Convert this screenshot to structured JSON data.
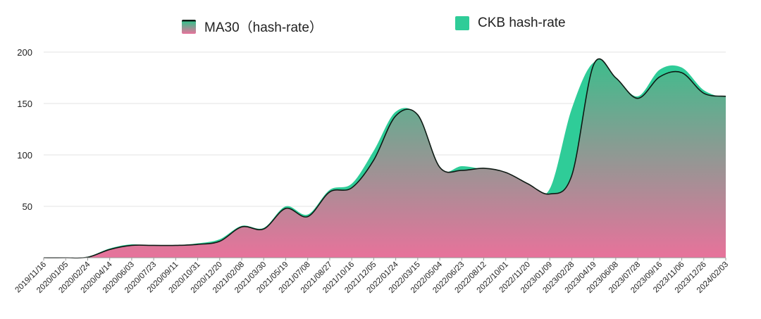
{
  "chart_data": {
    "type": "area",
    "title": "",
    "xlabel": "",
    "ylabel": "",
    "ylim": [
      0,
      200
    ],
    "yticks": [
      50,
      100,
      150,
      200
    ],
    "grid": true,
    "legend_position": "top",
    "colors": {
      "ckb_fill": "#2fcc98",
      "ma30_gradient_top": "#3dbd8c",
      "ma30_gradient_bottom": "#e8729b",
      "ma30_line": "#0e1a14",
      "grid": "#e3e3e3",
      "axis": "#9a9a9a",
      "text": "#222222"
    },
    "categories": [
      "2019/11/16",
      "2020/01/05",
      "2020/02/24",
      "2020/04/14",
      "2020/06/03",
      "2020/07/23",
      "2020/09/11",
      "2020/10/31",
      "2020/12/20",
      "2021/02/08",
      "2021/03/30",
      "2021/05/19",
      "2021/07/08",
      "2021/08/27",
      "2021/10/16",
      "2021/12/05",
      "2022/01/24",
      "2022/03/15",
      "2022/05/04",
      "2022/06/23",
      "2022/08/12",
      "2022/10/01",
      "2022/11/20",
      "2023/01/09",
      "2023/02/28",
      "2023/04/19",
      "2023/06/08",
      "2023/07/28",
      "2023/09/16",
      "2023/11/06",
      "2023/12/26",
      "2024/02/03"
    ],
    "series": [
      {
        "name": "MA30（hash-rate）",
        "values": [
          0,
          0,
          0.5,
          8,
          12,
          12,
          12,
          13,
          16,
          30,
          28,
          48,
          40,
          64,
          68,
          95,
          138,
          139,
          88,
          85,
          87,
          83,
          72,
          62,
          80,
          188,
          175,
          155,
          176,
          180,
          160,
          157
        ]
      },
      {
        "name": "CKB hash-rate",
        "values": [
          0,
          0,
          1,
          9,
          13,
          11,
          12,
          14,
          18,
          31,
          29,
          50,
          42,
          66,
          72,
          104,
          142,
          138,
          86,
          89,
          86,
          83,
          66,
          67,
          145,
          190,
          175,
          157,
          183,
          185,
          163,
          155
        ]
      }
    ]
  }
}
